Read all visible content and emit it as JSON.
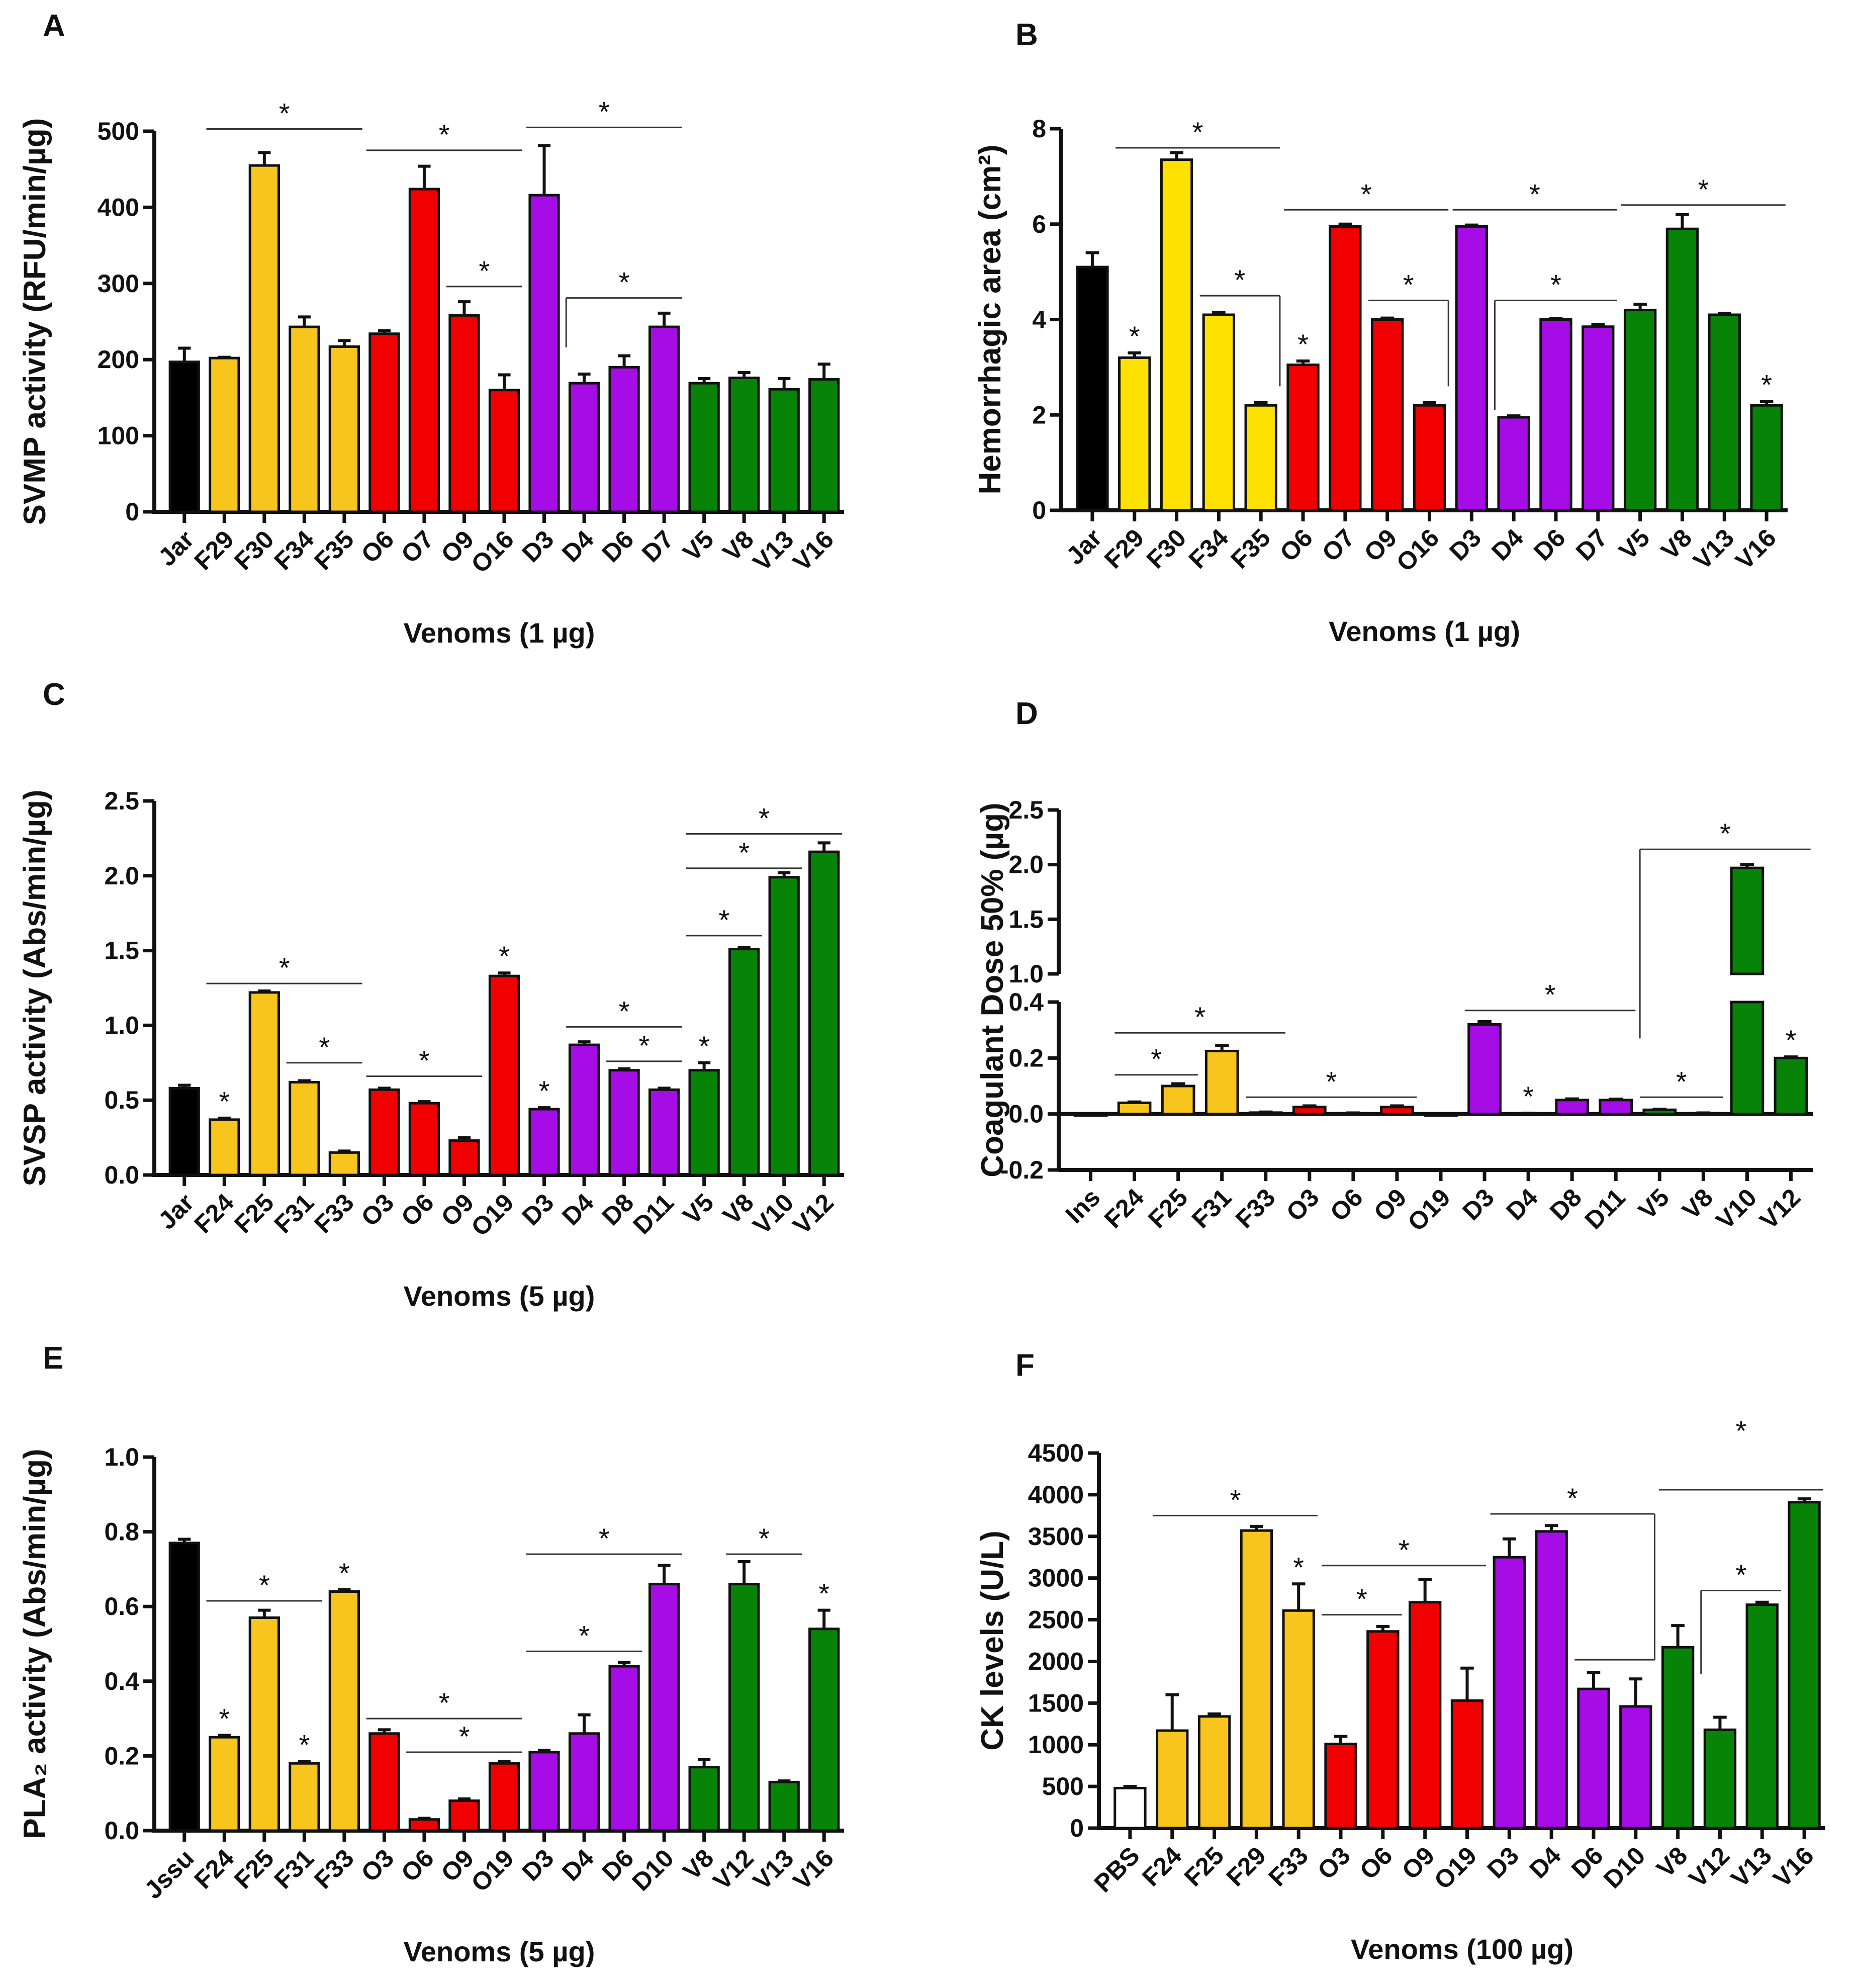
{
  "colors": {
    "black": "#000000",
    "yellow": "#F7C51E",
    "yellow_b": "#FFE100",
    "red": "#F00000",
    "purple": "#A60CE6",
    "green": "#078307",
    "white": "#FFFFFF"
  },
  "chart_data": [
    {
      "panel": "A",
      "type": "bar",
      "ylabel": "SVMP activity (RFU/min/µg)",
      "xlabel": "Venoms (1 µg)",
      "ylim": [
        0,
        500
      ],
      "yticks": [
        0,
        100,
        200,
        300,
        400,
        500
      ],
      "tick_decimals": 0,
      "categories": [
        "Jar",
        "F29",
        "F30",
        "F34",
        "F35",
        "O6",
        "O7",
        "O9",
        "O16",
        "D3",
        "D4",
        "D6",
        "D7",
        "V5",
        "V8",
        "V13",
        "V16"
      ],
      "values": [
        197,
        202,
        455,
        243,
        217,
        234,
        424,
        258,
        160,
        416,
        169,
        190,
        243,
        169,
        176,
        161,
        174
      ],
      "errors": [
        18,
        1,
        17,
        13,
        8,
        4,
        30,
        18,
        20,
        65,
        12,
        15,
        18,
        6,
        7,
        14,
        20
      ],
      "colors": [
        "black",
        "yellow",
        "yellow",
        "yellow",
        "yellow",
        "red",
        "red",
        "red",
        "red",
        "purple",
        "purple",
        "purple",
        "purple",
        "green",
        "green",
        "green",
        "green"
      ],
      "stars": [],
      "brackets": [
        {
          "from": "F29",
          "to": "F35",
          "y": 503
        },
        {
          "from": "O6",
          "to": "O16",
          "y": 475
        },
        {
          "from": "D3",
          "to": "D7",
          "y": 505
        },
        {
          "from": "O9",
          "to": "O16",
          "y": 296
        },
        {
          "from": "D4",
          "to": "D7",
          "y": 281,
          "drop_at": "from",
          "drop_y": 216
        }
      ]
    },
    {
      "panel": "B",
      "type": "bar",
      "ylabel": "Hemorrhagic area (cm²)",
      "xlabel": "Venoms (1 µg)",
      "ylim": [
        0,
        8
      ],
      "yticks": [
        0,
        2,
        4,
        6,
        8
      ],
      "tick_decimals": 0,
      "categories": [
        "Jar",
        "F29",
        "F30",
        "F34",
        "F35",
        "O6",
        "O7",
        "O9",
        "O16",
        "D3",
        "D4",
        "D6",
        "D7",
        "V5",
        "V8",
        "V13",
        "V16"
      ],
      "values": [
        5.1,
        3.2,
        7.35,
        4.1,
        2.2,
        3.05,
        5.95,
        4.0,
        2.2,
        5.95,
        1.95,
        4.0,
        3.85,
        4.2,
        5.9,
        4.1,
        2.2
      ],
      "errors": [
        0.3,
        0.1,
        0.15,
        0.05,
        0.06,
        0.08,
        0.05,
        0.03,
        0.06,
        0.03,
        0.03,
        0.02,
        0.05,
        0.12,
        0.3,
        0.03,
        0.08
      ],
      "colors": [
        "black",
        "yellow_b",
        "yellow_b",
        "yellow_b",
        "yellow_b",
        "red",
        "red",
        "red",
        "red",
        "purple",
        "purple",
        "purple",
        "purple",
        "green",
        "green",
        "green",
        "green"
      ],
      "stars": [
        "F29",
        "O6",
        "V16"
      ],
      "brackets": [
        {
          "from": "F29",
          "to": "F35",
          "y": 7.6
        },
        {
          "from": "F34",
          "to": "F35",
          "y": 4.5,
          "drop_at": "to",
          "drop_y": 2.6
        },
        {
          "from": "O6",
          "to": "O16",
          "y": 6.3
        },
        {
          "from": "O9",
          "to": "O16",
          "y": 4.4,
          "drop_at": "to",
          "drop_y": 2.6
        },
        {
          "from": "D3",
          "to": "D7",
          "y": 6.3
        },
        {
          "from": "D4",
          "to": "D7",
          "y": 4.4,
          "drop_at": "from",
          "drop_y": 2.1
        },
        {
          "from": "V5",
          "to": "V16",
          "y": 6.4
        }
      ]
    },
    {
      "panel": "C",
      "type": "bar",
      "ylabel": "SVSP activity (Abs/min/µg)",
      "xlabel": "Venoms (5 µg)",
      "ylim": [
        0,
        2.5
      ],
      "yticks": [
        0,
        0.5,
        1.0,
        1.5,
        2.0,
        2.5
      ],
      "tick_decimals": 1,
      "categories": [
        "Jar",
        "F24",
        "F25",
        "F31",
        "F33",
        "O3",
        "O6",
        "O9",
        "O19",
        "D3",
        "D4",
        "D8",
        "D11",
        "V5",
        "V8",
        "V10",
        "V12"
      ],
      "values": [
        0.58,
        0.37,
        1.22,
        0.62,
        0.15,
        0.57,
        0.48,
        0.23,
        1.33,
        0.44,
        0.87,
        0.7,
        0.57,
        0.7,
        1.51,
        1.99,
        2.16
      ],
      "errors": [
        0.02,
        0.01,
        0.01,
        0.01,
        0.01,
        0.01,
        0.01,
        0.02,
        0.02,
        0.01,
        0.02,
        0.01,
        0.01,
        0.05,
        0.01,
        0.03,
        0.06
      ],
      "colors": [
        "black",
        "yellow",
        "yellow",
        "yellow",
        "yellow",
        "red",
        "red",
        "red",
        "red",
        "purple",
        "purple",
        "purple",
        "purple",
        "green",
        "green",
        "green",
        "green"
      ],
      "stars": [
        "F24",
        "O19",
        "D3",
        "V5"
      ],
      "brackets": [
        {
          "from": "F24",
          "to": "F33",
          "y": 1.28
        },
        {
          "from": "F31",
          "to": "F33",
          "y": 0.75
        },
        {
          "from": "O3",
          "to": "O9",
          "y": 0.66
        },
        {
          "from": "D4",
          "to": "D11",
          "y": 0.99
        },
        {
          "from": "D8",
          "to": "D11",
          "y": 0.76
        },
        {
          "from": "V5",
          "to": "V8",
          "y": 1.6
        },
        {
          "from": "V5",
          "to": "V10",
          "y": 2.05
        },
        {
          "from": "V5",
          "to": "V12",
          "y": 2.28
        }
      ]
    },
    {
      "panel": "D",
      "type": "bar",
      "broken_axis": true,
      "ylabel": "Coagulant Dose 50% (µg)",
      "xlabel": "",
      "ylim_lower": [
        -0.2,
        0.4
      ],
      "ylim_upper": [
        1.0,
        2.5
      ],
      "yticks": [
        -0.2,
        0.0,
        0.2,
        0.4,
        1.0,
        1.5,
        2.0,
        2.5
      ],
      "tick_decimals": 1,
      "categories": [
        "Ins",
        "F24",
        "F25",
        "F31",
        "F33",
        "O3",
        "O6",
        "O9",
        "O19",
        "D3",
        "D4",
        "D8",
        "D11",
        "V5",
        "V8",
        "V10",
        "V12"
      ],
      "values": [
        0,
        0.04,
        0.1,
        0.225,
        0.005,
        0.025,
        0.003,
        0.025,
        0,
        0.32,
        0.002,
        0.05,
        0.05,
        0.015,
        0.003,
        1.97,
        0.2
      ],
      "errors": [
        0,
        0.003,
        0.008,
        0.02,
        0.002,
        0.004,
        0.001,
        0.004,
        0,
        0.01,
        0.001,
        0.004,
        0.003,
        0.002,
        0.001,
        0.03,
        0.004
      ],
      "colors": [
        "yellow",
        "yellow",
        "yellow",
        "yellow",
        "yellow",
        "red",
        "red",
        "red",
        "red",
        "purple",
        "purple",
        "purple",
        "purple",
        "green",
        "green",
        "green",
        "green"
      ],
      "stars": [
        "D4",
        "V12"
      ],
      "brackets": [
        {
          "from": "F24",
          "to": "F25",
          "y": 0.14
        },
        {
          "from": "F24",
          "to": "F33",
          "y": 0.29
        },
        {
          "from": "F33",
          "to": "O9",
          "y": 0.06
        },
        {
          "from": "D3",
          "to": "D11",
          "y": 0.37
        },
        {
          "from": "V5",
          "to": "V8",
          "y": 0.06
        },
        {
          "from": "V5",
          "to": "V12",
          "y": 2.14,
          "drop_at": "from",
          "drop_y": 0.27
        }
      ]
    },
    {
      "panel": "E",
      "type": "bar",
      "ylabel": "PLA₂ activity (Abs/min/µg)",
      "xlabel": "Venoms (5 µg)",
      "ylim": [
        0,
        1.0
      ],
      "yticks": [
        0,
        0.2,
        0.4,
        0.6,
        0.8,
        1.0
      ],
      "tick_decimals": 1,
      "categories": [
        "Jssu",
        "F24",
        "F25",
        "F31",
        "F33",
        "O3",
        "O6",
        "O9",
        "O19",
        "D3",
        "D4",
        "D6",
        "D10",
        "V8",
        "V12",
        "V13",
        "V16"
      ],
      "values": [
        0.77,
        0.25,
        0.57,
        0.18,
        0.64,
        0.26,
        0.03,
        0.08,
        0.18,
        0.21,
        0.26,
        0.44,
        0.66,
        0.17,
        0.66,
        0.13,
        0.54
      ],
      "errors": [
        0.01,
        0.005,
        0.02,
        0.005,
        0.005,
        0.01,
        0.003,
        0.005,
        0.005,
        0.005,
        0.05,
        0.01,
        0.05,
        0.02,
        0.06,
        0.003,
        0.05
      ],
      "colors": [
        "black",
        "yellow",
        "yellow",
        "yellow",
        "yellow",
        "red",
        "red",
        "red",
        "red",
        "purple",
        "purple",
        "purple",
        "purple",
        "green",
        "green",
        "green",
        "green"
      ],
      "stars": [
        "F24",
        "F31",
        "F33",
        "V16"
      ],
      "brackets": [
        {
          "from": "F24",
          "to": "F31",
          "y": 0.615
        },
        {
          "from": "O3",
          "to": "O19",
          "y": 0.3
        },
        {
          "from": "O6",
          "to": "O19",
          "y": 0.21
        },
        {
          "from": "D3",
          "to": "D10",
          "y": 0.74
        },
        {
          "from": "D3",
          "to": "D6",
          "y": 0.48
        },
        {
          "from": "V12",
          "to": "V13",
          "y": 0.74
        }
      ]
    },
    {
      "panel": "F",
      "type": "bar",
      "ylabel": "CK levels (U/L)",
      "xlabel": "Venoms (100 µg)",
      "ylim": [
        0,
        4500
      ],
      "yticks": [
        0,
        500,
        1000,
        1500,
        2000,
        2500,
        3000,
        3500,
        4000,
        4500
      ],
      "tick_decimals": 0,
      "categories": [
        "PBS",
        "F24",
        "F25",
        "F29",
        "F33",
        "O3",
        "O6",
        "O9",
        "O19",
        "D3",
        "D4",
        "D6",
        "D10",
        "V8",
        "V12",
        "V13",
        "V16"
      ],
      "values": [
        480,
        1170,
        1340,
        3570,
        2610,
        1010,
        2360,
        2710,
        1530,
        3250,
        3560,
        1670,
        1460,
        2170,
        1180,
        2680,
        3910
      ],
      "errors": [
        20,
        430,
        30,
        50,
        320,
        90,
        60,
        270,
        390,
        220,
        70,
        200,
        330,
        260,
        150,
        30,
        40
      ],
      "colors": [
        "white",
        "yellow",
        "yellow",
        "yellow",
        "yellow",
        "red",
        "red",
        "red",
        "red",
        "purple",
        "purple",
        "purple",
        "purple",
        "green",
        "green",
        "green",
        "green"
      ],
      "stars": [
        "F33"
      ],
      "brackets": [
        {
          "from": "F24",
          "to": "F33",
          "y": 3750
        },
        {
          "from": "O3",
          "to": "O19",
          "y": 3150
        },
        {
          "from": "O3",
          "to": "O6",
          "y": 2560
        },
        {
          "from": "D3",
          "to": "D10",
          "y": 3770,
          "drop_at": "to",
          "drop_y": 2020
        },
        {
          "from": "D6",
          "to": "D10",
          "y": 2020,
          "nostar": true
        },
        {
          "from": "V12",
          "to": "V13",
          "y": 2850,
          "drop_at": "from",
          "drop_y": 1850
        },
        {
          "from": "V8",
          "to": "V16",
          "y": 4060,
          "star_y": 4650
        }
      ]
    }
  ]
}
